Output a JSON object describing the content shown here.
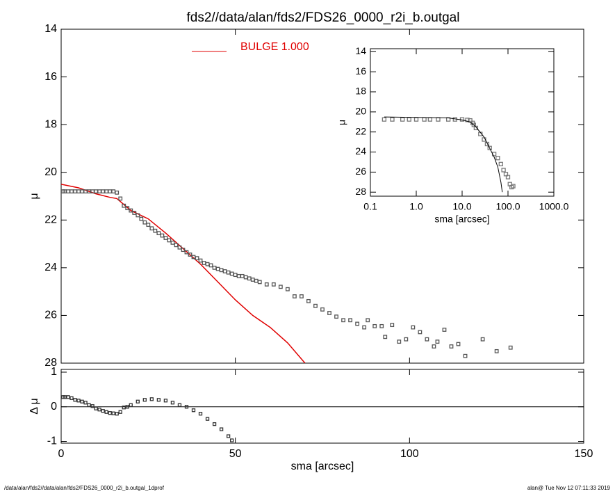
{
  "title": "fds2//data/alan/fds2/FDS26_0000_r2i_b.outgal",
  "footer_left": "/data/alan/fds2//data/alan/fds2/FDS26_0000_r2i_b.outgal_1dprof",
  "footer_right": "alan@  Tue Nov 12 07:11:33 2019",
  "chart_data": [
    {
      "type": "line",
      "ylabel": "μ",
      "xlim": [
        0,
        150
      ],
      "xticks": [
        0,
        50,
        100,
        150
      ],
      "ylim": [
        28,
        14
      ],
      "yticks": [
        14,
        16,
        18,
        20,
        22,
        24,
        26,
        28
      ],
      "legend": "top",
      "series": [
        {
          "name": "BULGE  1.000",
          "color": "#e00000",
          "style": "line",
          "x": [
            0,
            5,
            10,
            14,
            16,
            18,
            20,
            25,
            30,
            35,
            40,
            45,
            50,
            55,
            60,
            65,
            70
          ],
          "values": [
            20.5,
            20.65,
            20.9,
            21.05,
            21.1,
            21.35,
            21.6,
            21.95,
            22.55,
            23.2,
            23.85,
            24.6,
            25.35,
            26,
            26.5,
            27.15,
            28
          ]
        },
        {
          "color": "#555555",
          "style": "squares",
          "x": [
            0.5,
            1,
            2,
            3,
            4,
            5,
            6,
            7,
            8,
            9,
            10,
            11,
            12,
            13,
            14,
            15,
            16,
            17,
            18,
            19,
            20,
            21,
            22,
            23,
            24,
            25,
            26,
            27,
            28,
            29,
            30,
            31,
            32,
            33,
            34,
            35,
            36,
            37,
            38,
            39,
            40,
            41,
            42,
            43,
            44,
            45,
            46,
            47,
            48,
            49,
            50,
            51,
            52,
            53,
            54,
            55,
            56,
            57,
            59,
            61,
            63,
            65,
            67,
            69,
            71,
            73,
            75,
            77,
            79,
            81,
            83,
            85,
            87,
            88,
            90,
            92,
            93,
            95,
            97,
            99,
            101,
            103,
            105,
            107,
            108,
            110,
            112,
            114,
            116,
            121,
            125,
            129
          ],
          "values": [
            20.8,
            20.8,
            20.8,
            20.8,
            20.8,
            20.8,
            20.8,
            20.8,
            20.8,
            20.8,
            20.8,
            20.8,
            20.8,
            20.8,
            20.8,
            20.8,
            20.85,
            21.1,
            21.4,
            21.5,
            21.6,
            21.7,
            21.8,
            21.95,
            22.1,
            22.2,
            22.35,
            22.45,
            22.55,
            22.65,
            22.75,
            22.85,
            22.95,
            23.05,
            23.15,
            23.25,
            23.35,
            23.45,
            23.55,
            23.6,
            23.7,
            23.8,
            23.85,
            23.9,
            24,
            24.05,
            24.1,
            24.15,
            24.2,
            24.25,
            24.3,
            24.35,
            24.35,
            24.4,
            24.45,
            24.5,
            24.55,
            24.6,
            24.7,
            24.7,
            24.8,
            24.9,
            25.2,
            25.2,
            25.4,
            25.6,
            25.75,
            25.9,
            26.05,
            26.2,
            26.2,
            26.35,
            26.5,
            26.2,
            26.45,
            26.45,
            26.9,
            26.4,
            27.1,
            27,
            26.5,
            26.7,
            27,
            27.3,
            27.1,
            26.6,
            27.3,
            27.2,
            27.7,
            27,
            27.5,
            27.35
          ]
        }
      ]
    },
    {
      "type": "scatter",
      "ylabel": "Δ μ",
      "xlabel": "sma [arcsec]",
      "xlim": [
        0,
        150
      ],
      "xticks": [
        0,
        50,
        100,
        150
      ],
      "ylim": [
        -1.05,
        1.08
      ],
      "yticks": [
        1,
        0,
        -1
      ],
      "hline": 0,
      "series": [
        {
          "color": "#333333",
          "style": "squares",
          "x": [
            0.5,
            1,
            2,
            3,
            4,
            5,
            6,
            7,
            8,
            9,
            10,
            11,
            12,
            13,
            14,
            15,
            16,
            17,
            18,
            19,
            20,
            22,
            24,
            26,
            28,
            30,
            32,
            34,
            36,
            38,
            40,
            42,
            44,
            46,
            48,
            49
          ],
          "values": [
            0.28,
            0.28,
            0.28,
            0.25,
            0.2,
            0.18,
            0.15,
            0.12,
            0.05,
            0.02,
            -0.05,
            -0.08,
            -0.12,
            -0.15,
            -0.18,
            -0.19,
            -0.2,
            -0.15,
            -0.02,
            0,
            0.05,
            0.15,
            0.2,
            0.22,
            0.2,
            0.18,
            0.12,
            0.05,
            0,
            -0.1,
            -0.2,
            -0.35,
            -0.5,
            -0.65,
            -0.85,
            -0.97
          ]
        }
      ]
    },
    {
      "type": "line",
      "ylabel": "μ",
      "xlabel": "sma [arcsec]",
      "xscale": "log",
      "xlim": [
        0.1,
        1000
      ],
      "xticks": [
        {
          "value": 0.1,
          "label": "0.1"
        },
        {
          "value": 1,
          "label": "1.0"
        },
        {
          "value": 10,
          "label": "10.0"
        },
        {
          "value": 100,
          "label": "100.0"
        },
        {
          "value": 1000,
          "label": "1000.0"
        }
      ],
      "ylim": [
        28.4,
        13.7
      ],
      "yticks": [
        14,
        16,
        18,
        20,
        22,
        24,
        26,
        28
      ],
      "series": [
        {
          "color": "#777777",
          "style": "squares",
          "x": [
            0.2,
            0.3,
            0.5,
            0.7,
            1,
            1.5,
            2,
            3,
            5,
            7,
            10,
            13,
            15,
            17,
            18,
            20,
            25,
            30,
            35,
            40,
            50,
            60,
            70,
            80,
            90,
            100,
            110,
            120,
            130
          ],
          "values": [
            20.75,
            20.75,
            20.75,
            20.75,
            20.75,
            20.75,
            20.75,
            20.75,
            20.75,
            20.75,
            20.75,
            20.8,
            20.85,
            21.1,
            21.3,
            21.6,
            22.2,
            22.75,
            23.2,
            23.6,
            24.2,
            24.6,
            25.2,
            25.8,
            26.2,
            26.5,
            27.2,
            27.5,
            27.4
          ]
        },
        {
          "color": "#000000",
          "style": "line",
          "x": [
            0.2,
            1,
            5,
            10,
            15,
            20,
            30,
            50,
            60,
            70,
            75
          ],
          "values": [
            20.5,
            20.55,
            20.6,
            20.8,
            21,
            21.5,
            22.5,
            24.5,
            25.5,
            27,
            28
          ]
        }
      ]
    }
  ]
}
